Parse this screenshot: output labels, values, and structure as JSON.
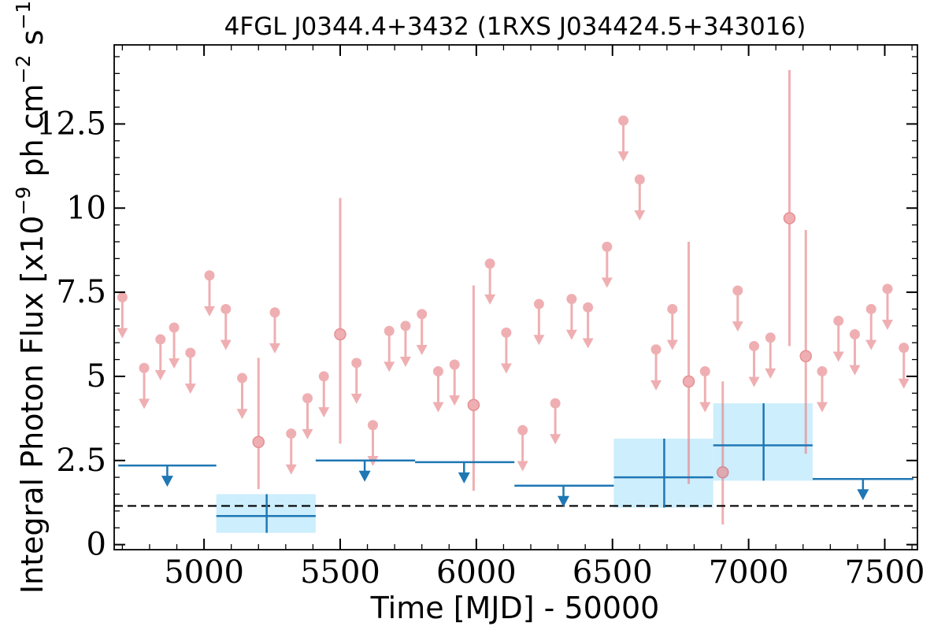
{
  "chart_data": {
    "type": "scatter",
    "title": "4FGL J0344.4+3432 (1RXS J034424.5+343016)",
    "xlabel": "Time [MJD] - 50000",
    "ylabel_main": "Integral Photon Flux [x10",
    "ylabel_exp1": "−9",
    "ylabel_mid": " ph cm",
    "ylabel_exp2": "−2",
    "ylabel_mid2": " s",
    "ylabel_exp3": "−1",
    "ylabel_end": "]",
    "xlim": [
      4670,
      7620
    ],
    "ylim": [
      -0.15,
      14.85
    ],
    "x_ticks": [
      {
        "value": 5000,
        "label": "5000"
      },
      {
        "value": 5500,
        "label": "5500"
      },
      {
        "value": 6000,
        "label": "6000"
      },
      {
        "value": 6500,
        "label": "6500"
      },
      {
        "value": 7000,
        "label": "7000"
      },
      {
        "value": 7500,
        "label": "7500"
      }
    ],
    "y_ticks": [
      {
        "value": 0,
        "label": "0"
      },
      {
        "value": 2.5,
        "label": "2.5"
      },
      {
        "value": 5,
        "label": "5"
      },
      {
        "value": 7.5,
        "label": "7.5"
      },
      {
        "value": 10,
        "label": "10"
      },
      {
        "value": 12.5,
        "label": "12.5"
      }
    ],
    "x_minor_step": 100,
    "y_minor_step": 0.5,
    "colors": {
      "short_bins": "#e8858a",
      "long_bins": "#1f77b4",
      "long_bins_band": "#cdeefc",
      "reference_line": "#000000"
    },
    "reference_level": 1.15,
    "short_bins_detections": [
      {
        "x": 5200,
        "y": 3.05,
        "err_low": 1.65,
        "err_high": 5.55
      },
      {
        "x": 5500,
        "y": 6.25,
        "err_low": 3.0,
        "err_high": 10.3
      },
      {
        "x": 5990,
        "y": 4.15,
        "err_low": 1.6,
        "err_high": 7.7
      },
      {
        "x": 6780,
        "y": 4.85,
        "err_low": 1.8,
        "err_high": 9.0
      },
      {
        "x": 6905,
        "y": 2.15,
        "err_low": 0.6,
        "err_high": 4.85
      },
      {
        "x": 7150,
        "y": 9.7,
        "err_low": 5.9,
        "err_high": 14.1
      },
      {
        "x": 7210,
        "y": 5.6,
        "err_low": 2.7,
        "err_high": 9.35
      }
    ],
    "short_bins_upper_limits": [
      {
        "x": 4700,
        "y": 7.35
      },
      {
        "x": 4780,
        "y": 5.25
      },
      {
        "x": 4840,
        "y": 6.1
      },
      {
        "x": 4890,
        "y": 6.45
      },
      {
        "x": 4950,
        "y": 5.7
      },
      {
        "x": 5020,
        "y": 8.0
      },
      {
        "x": 5080,
        "y": 7.0
      },
      {
        "x": 5140,
        "y": 4.95
      },
      {
        "x": 5260,
        "y": 6.9
      },
      {
        "x": 5320,
        "y": 3.3
      },
      {
        "x": 5380,
        "y": 4.35
      },
      {
        "x": 5440,
        "y": 5.0
      },
      {
        "x": 5560,
        "y": 5.4
      },
      {
        "x": 5620,
        "y": 3.55
      },
      {
        "x": 5680,
        "y": 6.35
      },
      {
        "x": 5740,
        "y": 6.5
      },
      {
        "x": 5800,
        "y": 6.85
      },
      {
        "x": 5860,
        "y": 5.15
      },
      {
        "x": 5920,
        "y": 5.35
      },
      {
        "x": 6050,
        "y": 8.35
      },
      {
        "x": 6110,
        "y": 6.3
      },
      {
        "x": 6170,
        "y": 3.4
      },
      {
        "x": 6230,
        "y": 7.15
      },
      {
        "x": 6290,
        "y": 4.2
      },
      {
        "x": 6350,
        "y": 7.3
      },
      {
        "x": 6410,
        "y": 7.05
      },
      {
        "x": 6480,
        "y": 8.85
      },
      {
        "x": 6540,
        "y": 12.6
      },
      {
        "x": 6600,
        "y": 10.85
      },
      {
        "x": 6660,
        "y": 5.8
      },
      {
        "x": 6720,
        "y": 7.0
      },
      {
        "x": 6840,
        "y": 5.15
      },
      {
        "x": 6960,
        "y": 7.55
      },
      {
        "x": 7020,
        "y": 5.9
      },
      {
        "x": 7080,
        "y": 6.15
      },
      {
        "x": 7270,
        "y": 5.15
      },
      {
        "x": 7330,
        "y": 6.65
      },
      {
        "x": 7390,
        "y": 6.25
      },
      {
        "x": 7450,
        "y": 7.0
      },
      {
        "x": 7510,
        "y": 7.6
      },
      {
        "x": 7570,
        "y": 5.85
      }
    ],
    "long_bins_detections": [
      {
        "x": 5230,
        "x0": 5045,
        "x1": 5410,
        "y": 0.85,
        "err_low": 0.35,
        "err_high": 1.5
      },
      {
        "x": 6690,
        "x0": 6505,
        "x1": 6870,
        "y": 2.0,
        "err_low": 1.1,
        "err_high": 3.15
      },
      {
        "x": 7055,
        "x0": 6870,
        "x1": 7235,
        "y": 2.95,
        "err_low": 1.9,
        "err_high": 4.2
      }
    ],
    "long_bins_upper_limits": [
      {
        "x": 4865,
        "x0": 4685,
        "x1": 5045,
        "y": 2.35
      },
      {
        "x": 5590,
        "x0": 5410,
        "x1": 5775,
        "y": 2.5
      },
      {
        "x": 5955,
        "x0": 5775,
        "x1": 6140,
        "y": 2.45
      },
      {
        "x": 6320,
        "x0": 6140,
        "x1": 6505,
        "y": 1.75
      },
      {
        "x": 7420,
        "x0": 7235,
        "x1": 7605,
        "y": 1.95
      }
    ]
  }
}
